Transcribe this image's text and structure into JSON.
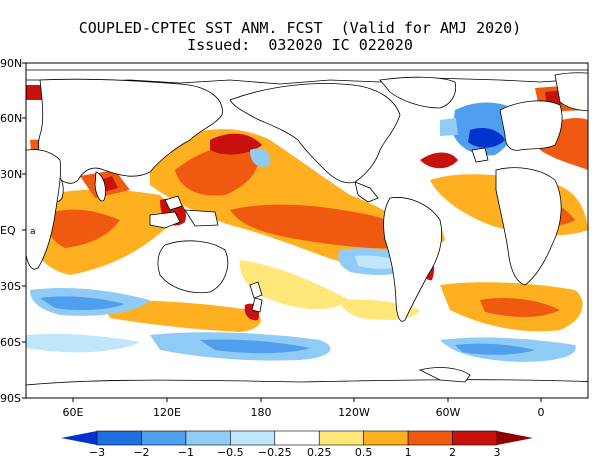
{
  "title": {
    "line1": "COUPLED-CPTEC SST ANM. FCST  (Valid for AMJ 2020)",
    "line2": "Issued:  032020 IC 022020"
  },
  "map": {
    "lat_labels": [
      "90N",
      "60N",
      "30N",
      "EQ",
      "30S",
      "60S",
      "90S"
    ],
    "lon_labels": [
      "60E",
      "120E",
      "180",
      "120W",
      "60W",
      "0"
    ],
    "background_color": "#ffffff",
    "coast_color": "#000000",
    "anomaly_fields": [
      {
        "value": 1,
        "region": "Indian Ocean"
      },
      {
        "value": 2,
        "region": "Bay of Bengal / Arabian Sea"
      },
      {
        "value": 1,
        "region": "Central tropical Pacific"
      },
      {
        "value": 2,
        "region": "Western Pacific / Maritime Continent"
      },
      {
        "value": -0.5,
        "region": "Southeast tropical Pacific"
      },
      {
        "value": -1,
        "region": "North Atlantic subpolar"
      },
      {
        "value": -2,
        "region": "Labrador Sea"
      },
      {
        "value": 1,
        "region": "Tropical Atlantic"
      },
      {
        "value": -1,
        "region": "Southern Ocean"
      }
    ]
  },
  "colorbar": {
    "labels": [
      "−3",
      "−2",
      "−1",
      "−0.5",
      "−0.25",
      "0.25",
      "0.5",
      "1",
      "2",
      "3"
    ],
    "colors": [
      "#0033cc",
      "#1f6fe0",
      "#4f9fee",
      "#8fcbf4",
      "#bfe6fa",
      "#ffffff",
      "#ffe77a",
      "#ffb020",
      "#f05a10",
      "#c8100c",
      "#8b0000"
    ]
  }
}
